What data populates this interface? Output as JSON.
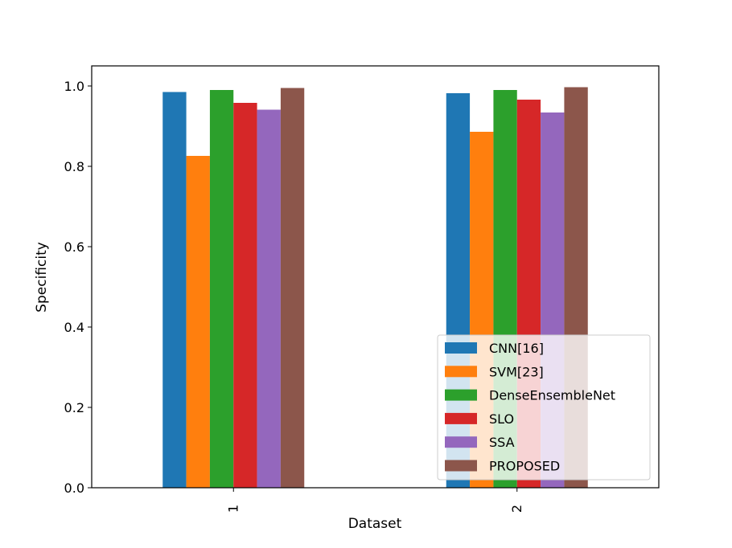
{
  "chart_data": {
    "type": "bar",
    "title": "",
    "xlabel": "Dataset",
    "ylabel": "Specificity",
    "categories": [
      "1",
      "2"
    ],
    "ylim": [
      0,
      1.05
    ],
    "yticks": [
      "0.0",
      "0.2",
      "0.4",
      "0.6",
      "0.8",
      "1.0"
    ],
    "grid": false,
    "legend_position": "lower-right",
    "series": [
      {
        "name": "CNN[16]",
        "color": "#1f77b4",
        "values": [
          0.985,
          0.982
        ]
      },
      {
        "name": "SVM[23]",
        "color": "#ff7f0e",
        "values": [
          0.826,
          0.886
        ]
      },
      {
        "name": "DenseEnsembleNet",
        "color": "#2ca02c",
        "values": [
          0.99,
          0.99
        ]
      },
      {
        "name": "SLO",
        "color": "#d62728",
        "values": [
          0.958,
          0.966
        ]
      },
      {
        "name": "SSA",
        "color": "#9467bd",
        "values": [
          0.941,
          0.934
        ]
      },
      {
        "name": "PROPOSED",
        "color": "#8c564b",
        "values": [
          0.995,
          0.997
        ]
      }
    ]
  }
}
